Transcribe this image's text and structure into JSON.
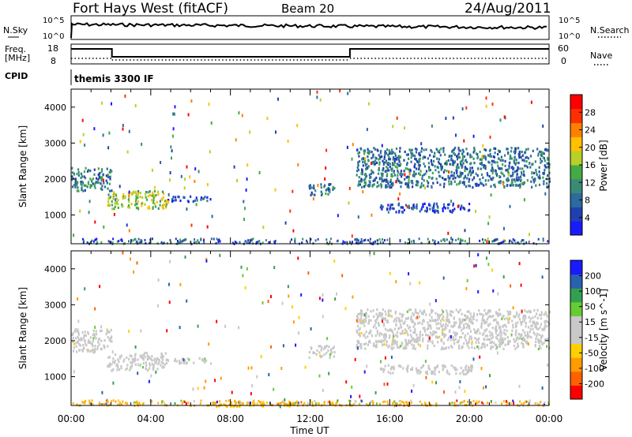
{
  "header": {
    "station": "Fort Hays West (fitACF)",
    "beam": "Beam 20",
    "date": "24/Aug/2011"
  },
  "labels": {
    "n_sky": "N.Sky",
    "n_search": "N.Search",
    "freq": "Freq.",
    "freq_unit": "[MHz]",
    "cpid": "CPID",
    "nave": "Nave",
    "cpid_value": "themis 3300 IF",
    "noise_tick_hi": "10^5",
    "noise_tick_lo": "10^0",
    "noise_tick_hi_r": "10^5",
    "noise_tick_lo_r": "10^0",
    "freq_tick_hi": "18",
    "freq_tick_lo": "8",
    "nave_tick_hi": "60",
    "nave_tick_lo": "0"
  },
  "colors": {
    "power_scale": [
      "#1a1aff",
      "#2040b0",
      "#2c6aa0",
      "#3a8a78",
      "#44aa44",
      "#b8d028",
      "#ffc000",
      "#ff8000",
      "#ff3000",
      "#ff0000"
    ],
    "velocity_scale": [
      "#ff0000",
      "#ff6000",
      "#ff9c00",
      "#ffd000",
      "#c8c8c8",
      "#c8c8c8",
      "#66cc33",
      "#33a050",
      "#2a60b0",
      "#1a1aff"
    ],
    "ground_scatter": "#ffb000"
  },
  "chart_data": [
    {
      "type": "heatmap",
      "name": "Power",
      "ylabel": "Slant Range [km]",
      "ylim": [
        200,
        4500
      ],
      "y_ticks": [
        1000,
        2000,
        3000,
        4000
      ],
      "x_ticks": [
        "00:00",
        "04:00",
        "08:00",
        "12:00",
        "16:00",
        "20:00",
        "00:00"
      ],
      "xlim_hours": [
        0,
        24
      ],
      "colorbar": {
        "label": "Power [dB]",
        "ticks": [
          "4",
          "8",
          "12",
          "16",
          "20",
          "24",
          "28"
        ],
        "range": [
          0,
          30
        ]
      },
      "features": [
        {
          "t_start": 0.0,
          "t_end": 2.0,
          "r_low": 1700,
          "r_high": 2350,
          "value": 10
        },
        {
          "t_start": 1.8,
          "t_end": 4.8,
          "r_low": 1200,
          "r_high": 1700,
          "value": 16
        },
        {
          "t_start": 4.8,
          "t_end": 7.0,
          "r_low": 1400,
          "r_high": 1550,
          "value": 6
        },
        {
          "t_start": 11.9,
          "t_end": 13.2,
          "r_low": 1550,
          "r_high": 1900,
          "value": 8
        },
        {
          "t_start": 14.3,
          "t_end": 24.0,
          "r_low": 1800,
          "r_high": 2900,
          "value": 8
        },
        {
          "t_start": 15.5,
          "t_end": 20.2,
          "r_low": 1100,
          "r_high": 1350,
          "value": 5
        }
      ]
    },
    {
      "type": "heatmap",
      "name": "Velocity",
      "ylabel": "Slant Range [km]",
      "ylim": [
        200,
        4500
      ],
      "y_ticks": [
        1000,
        2000,
        3000,
        4000
      ],
      "x_ticks": [
        "00:00",
        "04:00",
        "08:00",
        "12:00",
        "16:00",
        "20:00",
        "00:00"
      ],
      "xlim_hours": [
        0,
        24
      ],
      "xlabel": "Time UT",
      "colorbar": {
        "label": "Velocity [m s^-1]",
        "ticks": [
          "200",
          "100",
          "50",
          "15",
          "-15",
          "-50",
          "-100",
          "-200"
        ],
        "range": [
          -250,
          250
        ]
      },
      "features": [
        {
          "t_start": 0.0,
          "t_end": 2.0,
          "r_low": 1700,
          "r_high": 2350,
          "value": 0
        },
        {
          "t_start": 1.8,
          "t_end": 4.8,
          "r_low": 1200,
          "r_high": 1700,
          "value": 0
        },
        {
          "t_start": 4.8,
          "t_end": 7.0,
          "r_low": 1400,
          "r_high": 1550,
          "value": 0
        },
        {
          "t_start": 11.9,
          "t_end": 13.2,
          "r_low": 1550,
          "r_high": 1900,
          "value": 0
        },
        {
          "t_start": 14.3,
          "t_end": 24.0,
          "r_low": 1800,
          "r_high": 2900,
          "value": 0
        },
        {
          "t_start": 15.5,
          "t_end": 20.2,
          "r_low": 1100,
          "r_high": 1350,
          "value": 0
        },
        {
          "t_start": 7.0,
          "t_end": 14.0,
          "r_low": 200,
          "r_high": 320,
          "value": -60
        }
      ]
    }
  ]
}
